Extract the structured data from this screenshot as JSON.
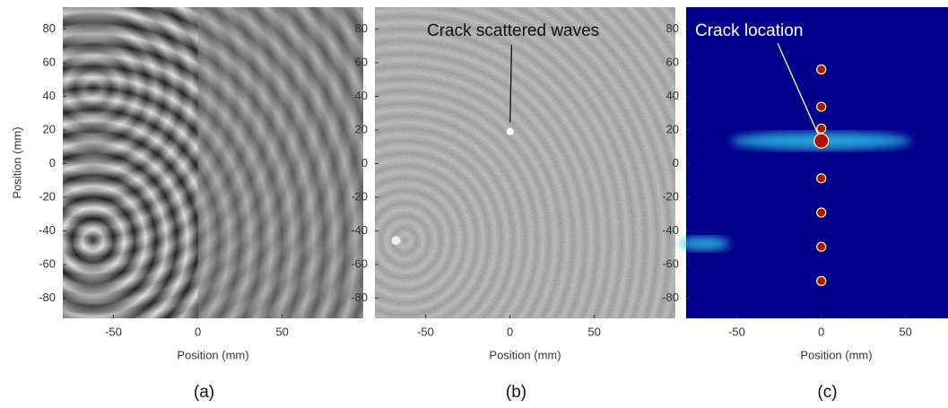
{
  "chart_data": [
    {
      "type": "image",
      "caption": "(a)",
      "xlabel": "Position (mm)",
      "ylabel": "Position (mm)",
      "xlim": [
        -80,
        98
      ],
      "ylim": [
        -92,
        93
      ],
      "xticks": [
        -50,
        0,
        50
      ],
      "yticks": [
        -80,
        -60,
        -40,
        -20,
        0,
        20,
        40,
        60,
        80
      ],
      "colormap": "gray"
    },
    {
      "type": "image",
      "caption": "(b)",
      "xlabel": "Position (mm)",
      "xlim": [
        -80,
        98
      ],
      "ylim": [
        -92,
        93
      ],
      "xticks": [
        -50,
        0,
        50
      ],
      "yticks": [
        -80,
        -60,
        -40,
        -20,
        0,
        20,
        40,
        60,
        80
      ],
      "colormap": "gray",
      "annotation": "Crack scattered waves"
    },
    {
      "type": "image",
      "caption": "(c)",
      "xlabel": "Position (mm)",
      "xlim": [
        -80,
        98
      ],
      "ylim": [
        -92,
        93
      ],
      "xticks": [
        -50,
        0,
        50
      ],
      "yticks": [
        -80,
        -60,
        -40,
        -20,
        0,
        20,
        40,
        60,
        80
      ],
      "colormap": "jet",
      "annotation": "Crack location"
    }
  ]
}
